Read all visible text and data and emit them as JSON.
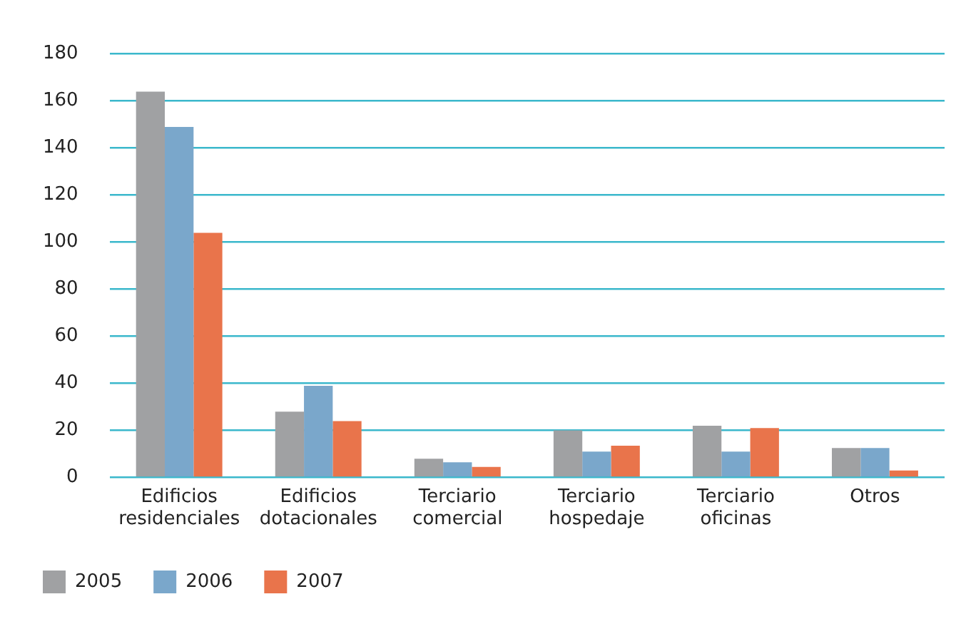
{
  "chart_data": {
    "type": "bar",
    "categories": [
      "Edificios residenciales",
      "Edificios dotacionales",
      "Terciario comercial",
      "Terciario hospedaje",
      "Terciario oficinas",
      "Otros"
    ],
    "series": [
      {
        "name": "2005",
        "color": "#a0a1a3",
        "values": [
          164,
          28,
          8,
          20,
          22,
          12.5
        ]
      },
      {
        "name": "2006",
        "color": "#7aa7cb",
        "values": [
          149,
          39,
          6.5,
          11,
          11,
          12.5
        ]
      },
      {
        "name": "2007",
        "color": "#e9744b",
        "values": [
          104,
          24,
          4.5,
          13.5,
          21,
          3
        ]
      }
    ],
    "ylim": [
      0,
      180
    ],
    "yticks": [
      0,
      20,
      40,
      60,
      80,
      100,
      120,
      140,
      160,
      180
    ],
    "grid": "y",
    "legend": "bottom left"
  }
}
